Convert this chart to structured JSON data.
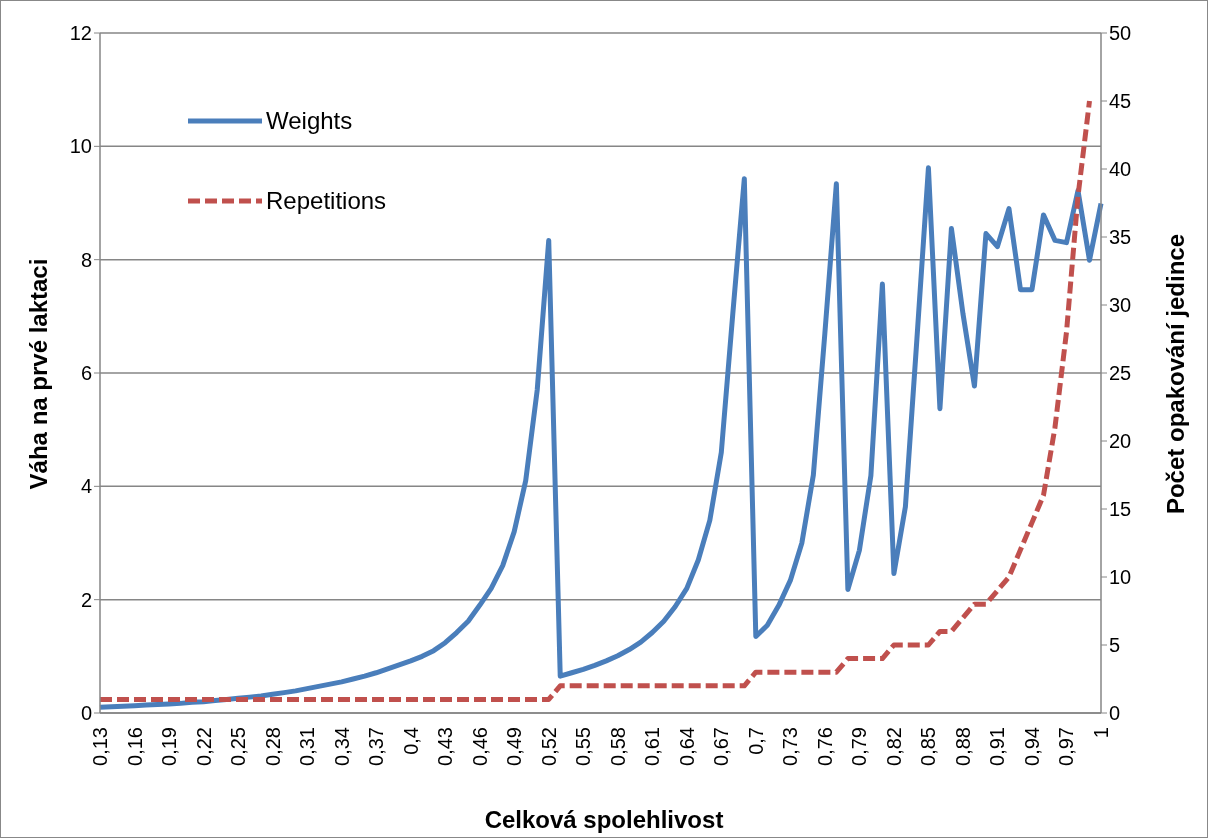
{
  "chart_data": {
    "type": "line",
    "xlabel": "Celková spolehlivost",
    "ylabel": "Váha na prvé laktaci",
    "y2label": "Počet opakování jedince",
    "categories": [
      "0,13",
      null,
      null,
      "0,16",
      null,
      null,
      "0,19",
      null,
      null,
      "0,22",
      null,
      null,
      "0,25",
      null,
      null,
      "0,28",
      null,
      null,
      "0,31",
      null,
      null,
      "0,34",
      null,
      null,
      "0,37",
      null,
      null,
      "0,4",
      null,
      null,
      "0,43",
      null,
      null,
      "0,46",
      null,
      null,
      "0,49",
      null,
      null,
      "0,52",
      null,
      null,
      "0,55",
      null,
      null,
      "0,58",
      null,
      null,
      "0,61",
      null,
      null,
      "0,64",
      null,
      null,
      "0,67",
      null,
      null,
      "0,7",
      null,
      null,
      "0,73",
      null,
      null,
      "0,76",
      null,
      null,
      "0,79",
      null,
      null,
      "0,82",
      null,
      null,
      "0,85",
      null,
      null,
      "0,88",
      null,
      null,
      "0,91",
      null,
      null,
      "0,94",
      null,
      null,
      "0,97",
      null,
      null,
      "1"
    ],
    "series": [
      {
        "name": "Weights",
        "color": "#4a7ebb",
        "line_style": "solid",
        "values": [
          0.1,
          0.11,
          0.12,
          0.13,
          0.14,
          0.15,
          0.16,
          0.17,
          0.19,
          0.2,
          0.22,
          0.24,
          0.26,
          0.28,
          0.3,
          0.33,
          0.36,
          0.39,
          0.43,
          0.47,
          0.51,
          0.55,
          0.6,
          0.65,
          0.71,
          0.78,
          0.85,
          0.92,
          1.0,
          1.1,
          1.24,
          1.42,
          1.62,
          1.9,
          2.2,
          2.6,
          3.2,
          4.1,
          5.7,
          8.34,
          0.65,
          0.71,
          0.77,
          0.84,
          0.92,
          1.01,
          1.12,
          1.25,
          1.42,
          1.62,
          1.88,
          2.2,
          2.7,
          3.4,
          4.6,
          7.05,
          9.43,
          1.35,
          1.55,
          1.9,
          2.34,
          3.0,
          4.2,
          6.7,
          9.34,
          2.18,
          2.87,
          4.19,
          7.57,
          2.46,
          3.64,
          6.6,
          9.62,
          5.37,
          8.55,
          7.05,
          5.77,
          8.46,
          8.23,
          8.9,
          7.47,
          7.47,
          8.79,
          8.34,
          8.3,
          9.22,
          7.99,
          8.99
        ]
      },
      {
        "name": "Repetitions",
        "color": "#c0504d",
        "line_style": "dashed",
        "axis": "y2",
        "values": [
          1,
          1,
          1,
          1,
          1,
          1,
          1,
          1,
          1,
          1,
          1,
          1,
          1,
          1,
          1,
          1,
          1,
          1,
          1,
          1,
          1,
          1,
          1,
          1,
          1,
          1,
          1,
          1,
          1,
          1,
          1,
          1,
          1,
          1,
          1,
          1,
          1,
          1,
          1,
          1,
          2,
          2,
          2,
          2,
          2,
          2,
          2,
          2,
          2,
          2,
          2,
          2,
          2,
          2,
          2,
          2,
          2,
          3,
          3,
          3,
          3,
          3,
          3,
          3,
          3,
          4,
          4,
          4,
          4,
          5,
          5,
          5,
          5,
          6,
          6,
          7,
          8,
          8,
          9,
          10,
          12,
          14,
          16,
          21,
          28,
          38,
          45,
          null
        ]
      }
    ],
    "ylim": [
      0,
      12
    ],
    "yticks": [
      0,
      2,
      4,
      6,
      8,
      10,
      12
    ],
    "y2lim": [
      0,
      50
    ],
    "y2ticks": [
      0,
      5,
      10,
      15,
      20,
      25,
      30,
      35,
      40,
      45,
      50
    ],
    "grid": "y",
    "legend": "top left",
    "marker": "none"
  }
}
